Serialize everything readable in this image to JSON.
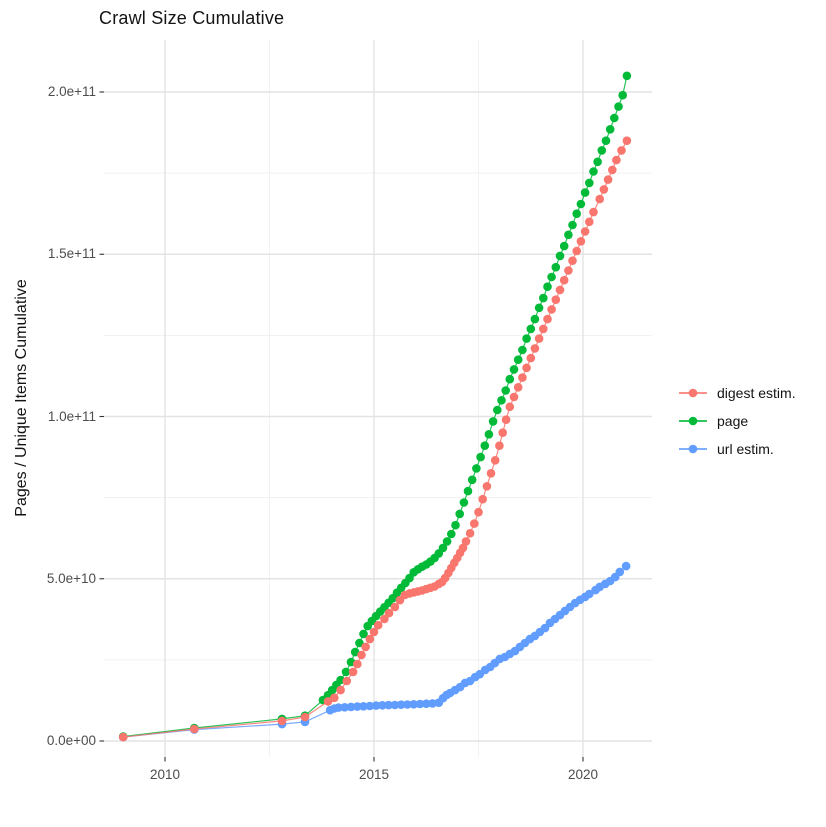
{
  "title": "Crawl Size Cumulative",
  "chart_data": {
    "type": "scatter",
    "title": "Crawl Size Cumulative",
    "xlabel": "",
    "ylabel": "Pages / Unique Items Cumulative",
    "x_unit": "year",
    "value_unit_note": "values are in billions (1e9) of pages / unique items",
    "xlim": [
      2008.55,
      2021.65
    ],
    "ylim_billions": [
      -10,
      215
    ],
    "grid": true,
    "legend_position": "right-center",
    "x_ticks": [
      {
        "value": 2010,
        "label": "2010"
      },
      {
        "value": 2015,
        "label": "2015"
      },
      {
        "value": 2020,
        "label": "2020"
      }
    ],
    "x_minor": [
      2012.5,
      2017.5
    ],
    "y_ticks": [
      {
        "value": 0,
        "label": "0.0e+00"
      },
      {
        "value": 50,
        "label": "5.0e+10"
      },
      {
        "value": 100,
        "label": "1.0e+11"
      },
      {
        "value": 150,
        "label": "1.5e+11"
      },
      {
        "value": 200,
        "label": "2.0e+11"
      }
    ],
    "y_minor": [
      25,
      75,
      125,
      175
    ],
    "colors": {
      "digest": "#F8766D",
      "page": "#00BA38",
      "url": "#619CFF",
      "grid_major": "#e3e3e3",
      "grid_minor": "#f1f1f1",
      "tick_mark": "#333333",
      "tick_label": "#4d4d4d"
    },
    "series": [
      {
        "name": "digest estim.",
        "color": "#F8766D",
        "points": [
          [
            2009.0,
            1.2
          ],
          [
            2010.7,
            3.7
          ],
          [
            2012.8,
            6.2
          ],
          [
            2013.35,
            7.4
          ],
          [
            2013.9,
            12.2
          ],
          [
            2014.05,
            13.3
          ],
          [
            2014.2,
            15.7
          ],
          [
            2014.35,
            18.5
          ],
          [
            2014.5,
            21.3
          ],
          [
            2014.6,
            23.7
          ],
          [
            2014.7,
            26.5
          ],
          [
            2014.8,
            29.0
          ],
          [
            2014.9,
            31.4
          ],
          [
            2015.0,
            33.6
          ],
          [
            2015.1,
            35.7
          ],
          [
            2015.25,
            37.6
          ],
          [
            2015.36,
            39.4
          ],
          [
            2015.5,
            41.3
          ],
          [
            2015.62,
            43.4
          ],
          [
            2015.74,
            45.0
          ],
          [
            2015.85,
            45.5
          ],
          [
            2015.95,
            45.8
          ],
          [
            2016.05,
            46.1
          ],
          [
            2016.15,
            46.4
          ],
          [
            2016.25,
            46.8
          ],
          [
            2016.35,
            47.2
          ],
          [
            2016.45,
            47.6
          ],
          [
            2016.55,
            48.4
          ],
          [
            2016.63,
            49.0
          ],
          [
            2016.7,
            50.2
          ],
          [
            2016.78,
            51.8
          ],
          [
            2016.85,
            53.3
          ],
          [
            2016.92,
            54.9
          ],
          [
            2016.99,
            56.4
          ],
          [
            2017.06,
            58.0
          ],
          [
            2017.13,
            59.5
          ],
          [
            2017.2,
            61.5
          ],
          [
            2017.3,
            64.0
          ],
          [
            2017.4,
            67.0
          ],
          [
            2017.5,
            70.5
          ],
          [
            2017.6,
            74.5
          ],
          [
            2017.7,
            78.5
          ],
          [
            2017.8,
            82.5
          ],
          [
            2017.9,
            86.5
          ],
          [
            2018.0,
            91.0
          ],
          [
            2018.08,
            95.0
          ],
          [
            2018.16,
            99.0
          ],
          [
            2018.25,
            103
          ],
          [
            2018.35,
            106
          ],
          [
            2018.45,
            109
          ],
          [
            2018.55,
            112
          ],
          [
            2018.65,
            115
          ],
          [
            2018.75,
            118
          ],
          [
            2018.85,
            121
          ],
          [
            2018.95,
            124
          ],
          [
            2019.05,
            127
          ],
          [
            2019.15,
            130
          ],
          [
            2019.25,
            133
          ],
          [
            2019.35,
            136
          ],
          [
            2019.45,
            139
          ],
          [
            2019.55,
            142
          ],
          [
            2019.65,
            145
          ],
          [
            2019.75,
            148
          ],
          [
            2019.85,
            151
          ],
          [
            2019.95,
            154
          ],
          [
            2020.05,
            157
          ],
          [
            2020.15,
            160
          ],
          [
            2020.25,
            163
          ],
          [
            2020.4,
            167
          ],
          [
            2020.5,
            170
          ],
          [
            2020.6,
            173
          ],
          [
            2020.7,
            176
          ],
          [
            2020.8,
            179
          ],
          [
            2020.92,
            182
          ],
          [
            2021.05,
            185
          ]
        ]
      },
      {
        "name": "page",
        "color": "#00BA38",
        "points": [
          [
            2009.0,
            1.4
          ],
          [
            2010.7,
            4.0
          ],
          [
            2012.8,
            6.8
          ],
          [
            2013.35,
            7.8
          ],
          [
            2013.78,
            12.6
          ],
          [
            2013.9,
            14.1
          ],
          [
            2014.0,
            15.7
          ],
          [
            2014.1,
            17.3
          ],
          [
            2014.2,
            18.8
          ],
          [
            2014.33,
            21.3
          ],
          [
            2014.45,
            24.3
          ],
          [
            2014.55,
            27.4
          ],
          [
            2014.65,
            30.2
          ],
          [
            2014.75,
            33.0
          ],
          [
            2014.85,
            35.4
          ],
          [
            2014.95,
            37.0
          ],
          [
            2015.05,
            38.5
          ],
          [
            2015.15,
            39.9
          ],
          [
            2015.25,
            41.2
          ],
          [
            2015.35,
            42.6
          ],
          [
            2015.45,
            44.0
          ],
          [
            2015.55,
            45.7
          ],
          [
            2015.65,
            47.2
          ],
          [
            2015.75,
            48.7
          ],
          [
            2015.85,
            50.2
          ],
          [
            2015.95,
            52.0
          ],
          [
            2016.05,
            52.9
          ],
          [
            2016.15,
            53.7
          ],
          [
            2016.25,
            54.4
          ],
          [
            2016.35,
            55.3
          ],
          [
            2016.45,
            56.4
          ],
          [
            2016.55,
            57.8
          ],
          [
            2016.65,
            59.5
          ],
          [
            2016.75,
            61.5
          ],
          [
            2016.85,
            63.8
          ],
          [
            2016.95,
            66.5
          ],
          [
            2017.05,
            70.0
          ],
          [
            2017.15,
            73.5
          ],
          [
            2017.25,
            77.0
          ],
          [
            2017.35,
            80.5
          ],
          [
            2017.45,
            84.0
          ],
          [
            2017.55,
            87.5
          ],
          [
            2017.65,
            91.0
          ],
          [
            2017.75,
            94.5
          ],
          [
            2017.85,
            98.5
          ],
          [
            2017.95,
            102
          ],
          [
            2018.05,
            105
          ],
          [
            2018.15,
            108
          ],
          [
            2018.25,
            111.5
          ],
          [
            2018.35,
            114.5
          ],
          [
            2018.45,
            117.5
          ],
          [
            2018.55,
            120.5
          ],
          [
            2018.65,
            124
          ],
          [
            2018.75,
            127
          ],
          [
            2018.85,
            130
          ],
          [
            2018.95,
            133.5
          ],
          [
            2019.05,
            136.5
          ],
          [
            2019.15,
            140
          ],
          [
            2019.25,
            143
          ],
          [
            2019.35,
            146
          ],
          [
            2019.45,
            149.5
          ],
          [
            2019.55,
            152.5
          ],
          [
            2019.65,
            156
          ],
          [
            2019.75,
            159
          ],
          [
            2019.85,
            162.5
          ],
          [
            2019.95,
            165.5
          ],
          [
            2020.05,
            169
          ],
          [
            2020.15,
            172
          ],
          [
            2020.25,
            175.5
          ],
          [
            2020.35,
            178.5
          ],
          [
            2020.45,
            182
          ],
          [
            2020.55,
            185
          ],
          [
            2020.65,
            188.5
          ],
          [
            2020.75,
            192
          ],
          [
            2020.85,
            195.5
          ],
          [
            2020.95,
            199
          ],
          [
            2021.05,
            205
          ]
        ]
      },
      {
        "name": "url estim.",
        "color": "#619CFF",
        "points": [
          [
            2009.0,
            1.2
          ],
          [
            2010.7,
            3.5
          ],
          [
            2012.8,
            5.2
          ],
          [
            2013.35,
            5.9
          ],
          [
            2013.95,
            9.5
          ],
          [
            2014.05,
            10.0
          ],
          [
            2014.15,
            10.3
          ],
          [
            2014.3,
            10.4
          ],
          [
            2014.45,
            10.5
          ],
          [
            2014.6,
            10.6
          ],
          [
            2014.75,
            10.7
          ],
          [
            2014.9,
            10.8
          ],
          [
            2015.05,
            10.9
          ],
          [
            2015.2,
            11.0
          ],
          [
            2015.35,
            11.05
          ],
          [
            2015.5,
            11.1
          ],
          [
            2015.65,
            11.2
          ],
          [
            2015.8,
            11.25
          ],
          [
            2015.95,
            11.3
          ],
          [
            2016.1,
            11.4
          ],
          [
            2016.25,
            11.5
          ],
          [
            2016.4,
            11.6
          ],
          [
            2016.55,
            11.8
          ],
          [
            2016.65,
            13.2
          ],
          [
            2016.74,
            14.2
          ],
          [
            2016.82,
            14.8
          ],
          [
            2016.94,
            15.7
          ],
          [
            2017.06,
            16.6
          ],
          [
            2017.18,
            17.9
          ],
          [
            2017.3,
            18.5
          ],
          [
            2017.42,
            19.7
          ],
          [
            2017.53,
            20.6
          ],
          [
            2017.66,
            21.9
          ],
          [
            2017.78,
            22.8
          ],
          [
            2017.89,
            24.0
          ],
          [
            2018.01,
            25.3
          ],
          [
            2018.13,
            25.9
          ],
          [
            2018.25,
            26.8
          ],
          [
            2018.37,
            27.7
          ],
          [
            2018.49,
            29.0
          ],
          [
            2018.61,
            30.2
          ],
          [
            2018.73,
            31.4
          ],
          [
            2018.85,
            32.4
          ],
          [
            2018.97,
            33.6
          ],
          [
            2019.09,
            34.8
          ],
          [
            2019.21,
            36.4
          ],
          [
            2019.33,
            37.6
          ],
          [
            2019.45,
            38.8
          ],
          [
            2019.57,
            40.1
          ],
          [
            2019.69,
            41.3
          ],
          [
            2019.81,
            42.5
          ],
          [
            2019.93,
            43.5
          ],
          [
            2020.05,
            44.4
          ],
          [
            2020.15,
            45.3
          ],
          [
            2020.3,
            46.5
          ],
          [
            2020.4,
            47.5
          ],
          [
            2020.53,
            48.4
          ],
          [
            2020.65,
            49.3
          ],
          [
            2020.77,
            50.5
          ],
          [
            2020.88,
            52.1
          ],
          [
            2021.03,
            53.9
          ]
        ]
      }
    ]
  }
}
